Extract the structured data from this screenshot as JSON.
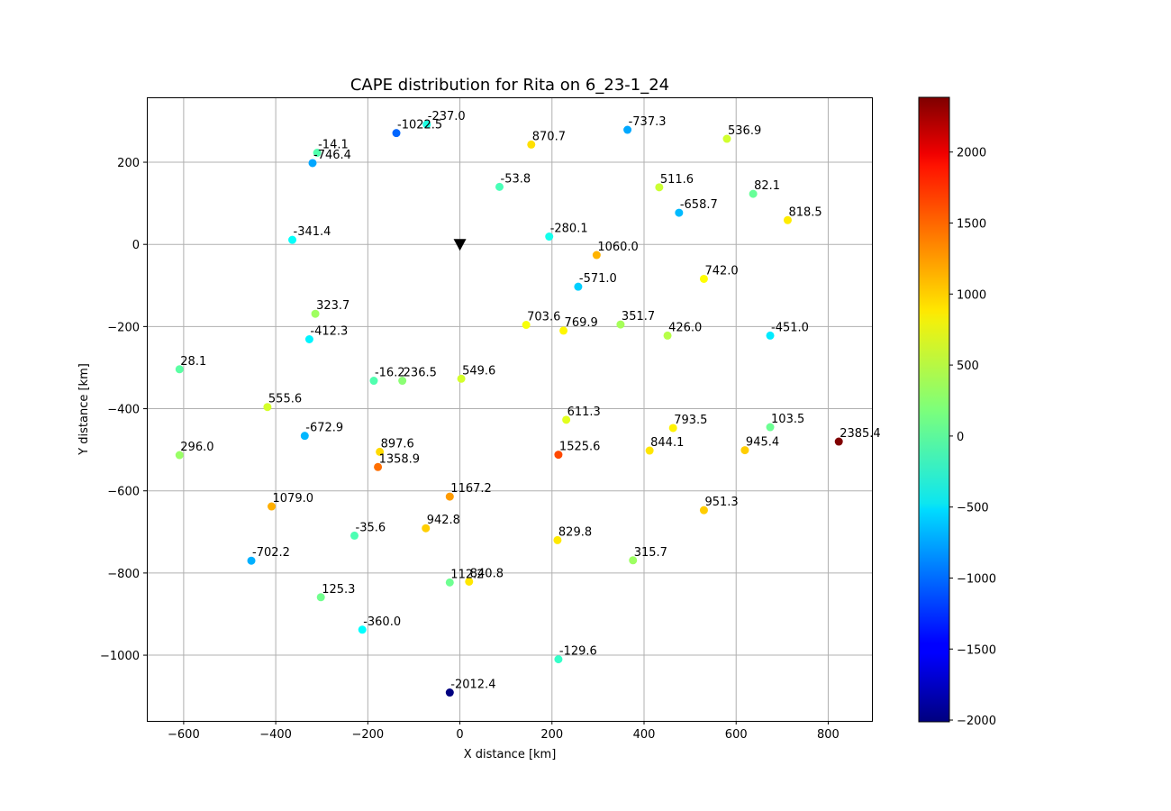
{
  "chart_data": {
    "type": "scatter",
    "title": "CAPE distribution for Rita on 6_23-1_24",
    "xlabel": "X distance [km]",
    "ylabel": "Y distance [km]",
    "xlim": [
      -680,
      895
    ],
    "ylim": [
      -1160,
      358
    ],
    "xticks": [
      -600,
      -400,
      -200,
      0,
      200,
      400,
      600,
      800
    ],
    "yticks": [
      -1000,
      -800,
      -600,
      -400,
      -200,
      0,
      200
    ],
    "xtick_labels": [
      "−600",
      "−400",
      "−200",
      "0",
      "200",
      "400",
      "600",
      "800"
    ],
    "ytick_labels": [
      "−1000",
      "−800",
      "−600",
      "−400",
      "−200",
      "0",
      "200"
    ],
    "grid": true,
    "colormap": "jet",
    "clim": [
      -2012.4,
      2385.4
    ],
    "colorbar_ticks": [
      -2000,
      -1500,
      -1000,
      -500,
      0,
      500,
      1000,
      1500,
      2000
    ],
    "colorbar_tick_labels": [
      "−2000",
      "−1500",
      "−1000",
      "−500",
      "0",
      "500",
      "1000",
      "1500",
      "2000"
    ],
    "center_marker": {
      "x": 0,
      "y": 0,
      "shape": "down-triangle",
      "color": "#000000"
    },
    "points": [
      {
        "x": -138,
        "y": 271,
        "value": -1022.5,
        "label": "-1022.5"
      },
      {
        "x": -72,
        "y": 292,
        "value": -237.0,
        "label": "-237.0"
      },
      {
        "x": -310,
        "y": 223,
        "value": -14.1,
        "label": "-14.1"
      },
      {
        "x": -320,
        "y": 198,
        "value": -746.4,
        "label": "-746.4"
      },
      {
        "x": 155,
        "y": 243,
        "value": 870.7,
        "label": "870.7"
      },
      {
        "x": 364,
        "y": 279,
        "value": -737.3,
        "label": "-737.3"
      },
      {
        "x": 580,
        "y": 257,
        "value": 536.9,
        "label": "536.9"
      },
      {
        "x": 86,
        "y": 140,
        "value": -53.8,
        "label": "-53.8"
      },
      {
        "x": 433,
        "y": 139,
        "value": 511.6,
        "label": "511.6"
      },
      {
        "x": 637,
        "y": 123,
        "value": 82.1,
        "label": "82.1"
      },
      {
        "x": 476,
        "y": 77,
        "value": -658.7,
        "label": "-658.7"
      },
      {
        "x": 712,
        "y": 59,
        "value": 818.5,
        "label": "818.5"
      },
      {
        "x": -364,
        "y": 11,
        "value": -341.4,
        "label": "-341.4"
      },
      {
        "x": 194,
        "y": 19,
        "value": -280.1,
        "label": "-280.1"
      },
      {
        "x": 297,
        "y": -26,
        "value": 1060.0,
        "label": "1060.0"
      },
      {
        "x": 257,
        "y": -103,
        "value": -571.0,
        "label": "-571.0"
      },
      {
        "x": 530,
        "y": -84,
        "value": 742.0,
        "label": "742.0"
      },
      {
        "x": -314,
        "y": -169,
        "value": 323.7,
        "label": "323.7"
      },
      {
        "x": -327,
        "y": -231,
        "value": -412.3,
        "label": "-412.3"
      },
      {
        "x": 144,
        "y": -196,
        "value": 703.6,
        "label": "703.6"
      },
      {
        "x": 225,
        "y": -210,
        "value": 769.9,
        "label": "769.9"
      },
      {
        "x": 349,
        "y": -195,
        "value": 351.7,
        "label": "351.7"
      },
      {
        "x": 451,
        "y": -222,
        "value": 426.0,
        "label": "426.0"
      },
      {
        "x": 674,
        "y": -222,
        "value": -451.0,
        "label": "-451.0"
      },
      {
        "x": -609,
        "y": -304,
        "value": 28.1,
        "label": "28.1"
      },
      {
        "x": -187,
        "y": -332,
        "value": -16.2,
        "label": "-16.2"
      },
      {
        "x": -125,
        "y": -332,
        "value": 236.5,
        "label": "236.5"
      },
      {
        "x": 3,
        "y": -327,
        "value": 549.6,
        "label": "549.6"
      },
      {
        "x": -418,
        "y": -396,
        "value": 555.6,
        "label": "555.6"
      },
      {
        "x": 231,
        "y": -427,
        "value": 611.3,
        "label": "611.3"
      },
      {
        "x": 463,
        "y": -447,
        "value": 793.5,
        "label": "793.5"
      },
      {
        "x": 674,
        "y": -445,
        "value": 103.5,
        "label": "103.5"
      },
      {
        "x": -337,
        "y": -466,
        "value": -672.9,
        "label": "-672.9"
      },
      {
        "x": -609,
        "y": -513,
        "value": 296.0,
        "label": "296.0"
      },
      {
        "x": -174,
        "y": -505,
        "value": 897.6,
        "label": "897.6"
      },
      {
        "x": -178,
        "y": -542,
        "value": 1358.9,
        "label": "1358.9"
      },
      {
        "x": 214,
        "y": -512,
        "value": 1525.6,
        "label": "1525.6"
      },
      {
        "x": 412,
        "y": -502,
        "value": 844.1,
        "label": "844.1"
      },
      {
        "x": 619,
        "y": -501,
        "value": 945.4,
        "label": "945.4"
      },
      {
        "x": 823,
        "y": -480,
        "value": 2385.4,
        "label": "2385.4"
      },
      {
        "x": -22,
        "y": -614,
        "value": 1167.2,
        "label": "1167.2"
      },
      {
        "x": -409,
        "y": -638,
        "value": 1079.0,
        "label": "1079.0"
      },
      {
        "x": -229,
        "y": -709,
        "value": -35.6,
        "label": "-35.6"
      },
      {
        "x": -74,
        "y": -691,
        "value": 942.8,
        "label": "942.8"
      },
      {
        "x": 212,
        "y": -720,
        "value": 829.8,
        "label": "829.8"
      },
      {
        "x": 530,
        "y": -647,
        "value": 951.3,
        "label": "951.3"
      },
      {
        "x": -453,
        "y": -770,
        "value": -702.2,
        "label": "-702.2"
      },
      {
        "x": 376,
        "y": -769,
        "value": 315.7,
        "label": "315.7"
      },
      {
        "x": -22,
        "y": -823,
        "value": 112.2,
        "label": "112.2"
      },
      {
        "x": 20,
        "y": -821,
        "value": 840.8,
        "label": "840.8"
      },
      {
        "x": -302,
        "y": -859,
        "value": 125.3,
        "label": "125.3"
      },
      {
        "x": -212,
        "y": -938,
        "value": -360.0,
        "label": "-360.0"
      },
      {
        "x": 214,
        "y": -1010,
        "value": -129.6,
        "label": "-129.6"
      },
      {
        "x": -22,
        "y": -1091,
        "value": -2012.4,
        "label": "-2012.4"
      }
    ]
  }
}
